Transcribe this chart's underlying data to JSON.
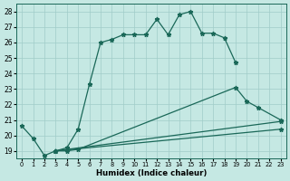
{
  "xlabel": "Humidex (Indice chaleur)",
  "bg_color": "#c5e8e3",
  "grid_color": "#a0ccc8",
  "line_color": "#1a6858",
  "xlim": [
    -0.5,
    23.5
  ],
  "ylim": [
    18.5,
    28.5
  ],
  "xtick_vals": [
    0,
    1,
    2,
    3,
    4,
    5,
    6,
    7,
    8,
    9,
    10,
    11,
    12,
    13,
    14,
    15,
    16,
    17,
    18,
    19,
    20,
    21,
    22,
    23
  ],
  "ytick_vals": [
    19,
    20,
    21,
    22,
    23,
    24,
    25,
    26,
    27,
    28
  ],
  "curve1_x": [
    0,
    1,
    2,
    3,
    4,
    5,
    6,
    7,
    8,
    9,
    10,
    11,
    12,
    13,
    14,
    15,
    16,
    17,
    18,
    19
  ],
  "curve1_y": [
    20.6,
    19.8,
    18.7,
    19.0,
    19.2,
    20.4,
    23.3,
    26.0,
    26.2,
    26.5,
    26.5,
    26.5,
    27.5,
    26.5,
    27.8,
    28.0,
    26.6,
    26.6,
    26.3,
    24.7
  ],
  "curve2_x": [
    3,
    4,
    5,
    19,
    20,
    21,
    23
  ],
  "curve2_y": [
    19.0,
    19.0,
    19.1,
    23.1,
    22.2,
    21.8,
    21.0
  ],
  "curve3_x": [
    3,
    23
  ],
  "curve3_y": [
    19.0,
    20.9
  ],
  "curve4_x": [
    3,
    23
  ],
  "curve4_y": [
    19.0,
    20.4
  ]
}
